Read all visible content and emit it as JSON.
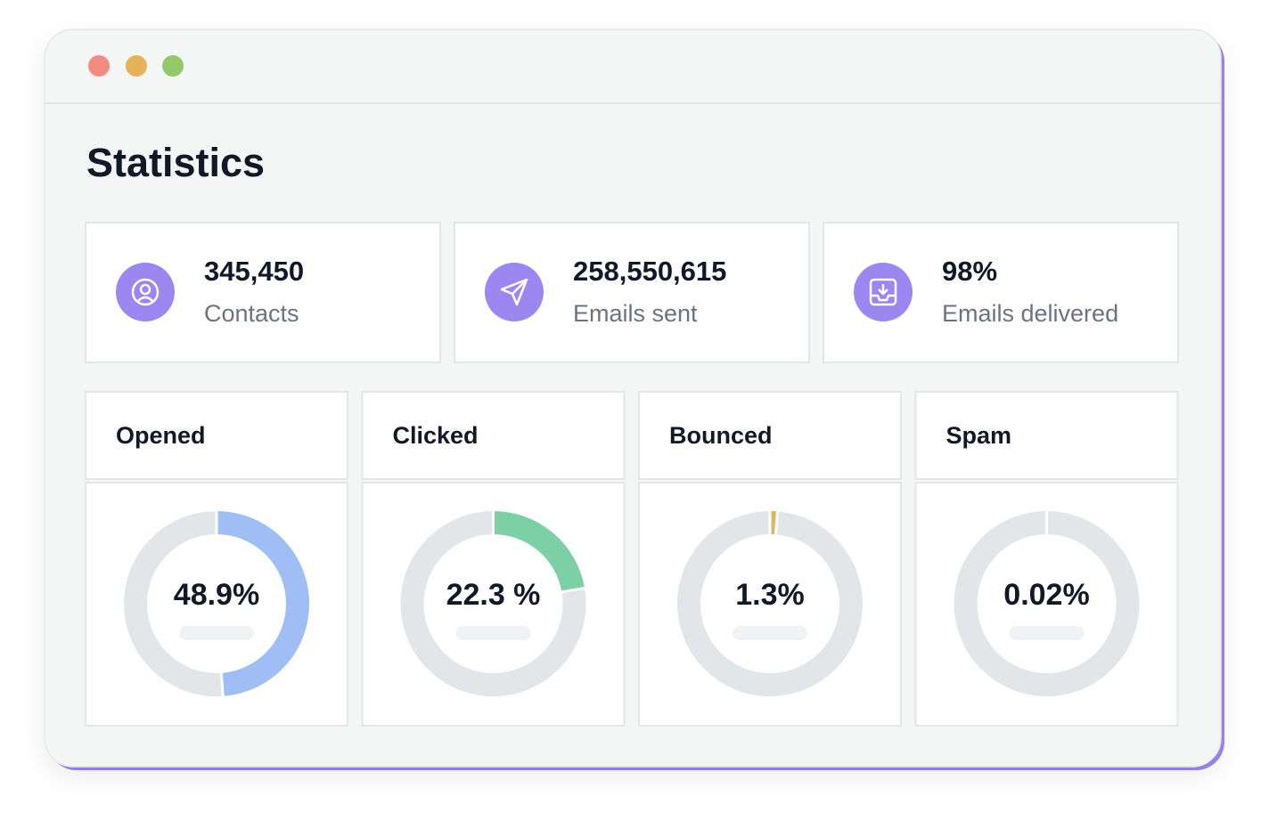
{
  "title": "Statistics",
  "stats": [
    {
      "value": "345,450",
      "label": "Contacts"
    },
    {
      "value": "258,550,615",
      "label": "Emails sent"
    },
    {
      "value": "98%",
      "label": "Emails delivered"
    }
  ],
  "donuts": [
    {
      "title": "Opened",
      "value": 48.9,
      "value_label": "48.9%",
      "color": "#9fbef5"
    },
    {
      "title": "Clicked",
      "value": 22.3,
      "value_label": "22.3 %",
      "color": "#7dcfa6"
    },
    {
      "title": "Bounced",
      "value": 1.3,
      "value_label": "1.3%",
      "color": "#e1b45f"
    },
    {
      "title": "Spam",
      "value": 0.02,
      "value_label": "0.02%",
      "color": "#ef9a8f"
    }
  ]
}
